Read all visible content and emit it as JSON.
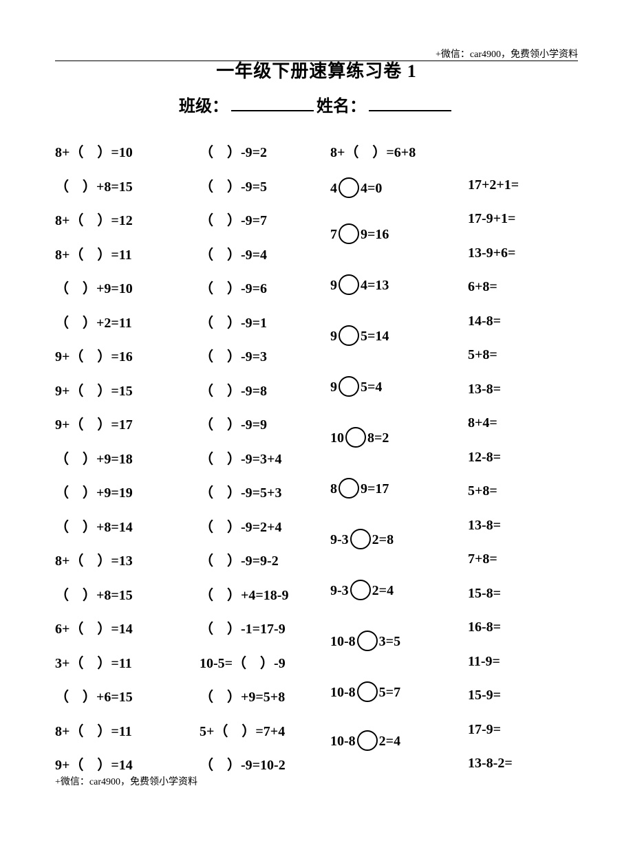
{
  "watermark": "+微信：car4900，免费领小学资料",
  "title": "一年级下册速算练习卷 1",
  "class_label": "班级：",
  "name_label": "姓名：",
  "paren_gap": "（ ）",
  "col1": [
    "8+（ ）=10",
    "（ ）+8=15",
    "8+（ ）=12",
    "8+（ ）=11",
    "（ ）+9=10",
    "（ ）+2=11",
    "9+（ ）=16",
    "9+（ ）=15",
    "9+（ ）=17",
    "（ ）+9=18",
    "（ ）+9=19",
    "（ ）+8=14",
    "8+（ ）=13",
    "（ ）+8=15",
    "6+（ ）=14",
    "3+（ ）=11",
    "（ ）+6=15",
    "8+（ ）=11",
    "9+（ ）=14"
  ],
  "col2": [
    "（ ）-9=2",
    "（ ）-9=5",
    "（ ）-9=7",
    "（ ）-9=4",
    "（ ）-9=6",
    "（ ）-9=1",
    "（ ）-9=3",
    "（ ）-9=8",
    "（ ）-9=9",
    "（ ）-9=3+4",
    "（ ）-9=5+3",
    "（ ）-9=2+4",
    "（ ）-9=9-2",
    "（ ）+4=18-9",
    "（ ）-1=17-9",
    "10-5=（ ）-9",
    "（ ）+9=5+8",
    "5+（ ）=7+4",
    "（ ）-9=10-2"
  ],
  "col3_first": "8+（ ）=6+8",
  "col3": [
    {
      "l": "4",
      "r": "4=0"
    },
    {
      "l": "7",
      "r": "9=16"
    },
    {
      "l": "9",
      "r": "4=13"
    },
    {
      "l": "9",
      "r": "5=14"
    },
    {
      "l": "9",
      "r": "5=4"
    },
    {
      "l": "10",
      "r": "8=2"
    },
    {
      "l": "8",
      "r": "9=17"
    },
    {
      "l": "9-3",
      "r": "2=8"
    },
    {
      "l": "9-3",
      "r": "2=4"
    },
    {
      "l": "10-8",
      "r": "3=5"
    },
    {
      "l": "10-8",
      "r": "5=7"
    },
    {
      "l": "10-8",
      "r": "2=4"
    }
  ],
  "col4": [
    "17+2+1=",
    "17-9+1=",
    "13-9+6=",
    "6+8=",
    "14-8=",
    "5+8=",
    "13-8=",
    "8+4=",
    "12-8=",
    "5+8=",
    "13-8=",
    "7+8=",
    "15-8=",
    "16-8=",
    "11-9=",
    "15-9=",
    "17-9=",
    "13-8-2="
  ]
}
